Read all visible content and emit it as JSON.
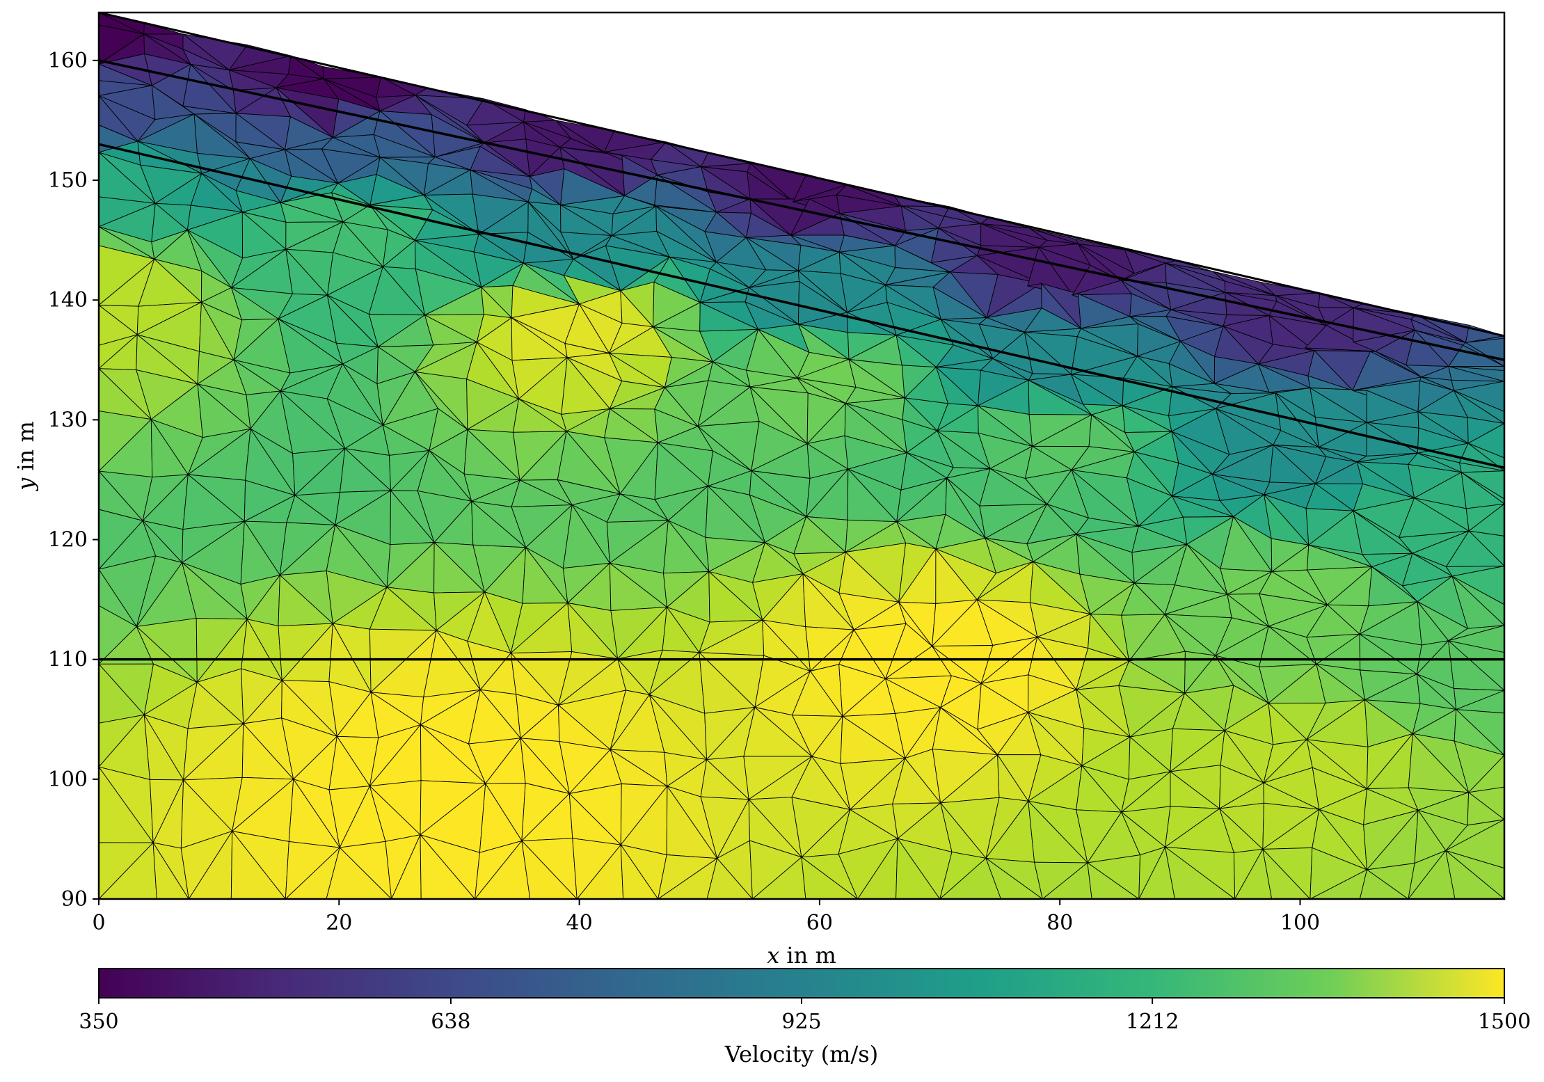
{
  "chart_data": {
    "type": "heatmap",
    "subtype": "triangulated velocity model (tripcolor)",
    "xlabel_var": "x",
    "xlabel_rest": " in m",
    "ylabel_var": "y",
    "ylabel_rest": " in m",
    "xlim": [
      0,
      117
    ],
    "ylim": [
      90,
      164
    ],
    "xticks": [
      "0",
      "20",
      "40",
      "60",
      "80",
      "100"
    ],
    "xtick_values": [
      0,
      20,
      40,
      60,
      80,
      100
    ],
    "yticks": [
      "90",
      "100",
      "110",
      "120",
      "130",
      "140",
      "150",
      "160"
    ],
    "ytick_values": [
      90,
      100,
      110,
      120,
      130,
      140,
      150,
      160
    ],
    "grid": false,
    "surface": {
      "x": [
        0,
        117
      ],
      "y": [
        164,
        137
      ]
    },
    "interfaces": [
      {
        "x": [
          0,
          117
        ],
        "y": [
          160,
          135
        ]
      },
      {
        "x": [
          0,
          117
        ],
        "y": [
          153,
          126
        ]
      },
      {
        "x": [
          0,
          117
        ],
        "y": [
          110,
          110
        ]
      }
    ],
    "colorbar": {
      "label": "Velocity (m/s)",
      "orientation": "horizontal",
      "colormap": "viridis",
      "min": 350,
      "max": 1500,
      "ticks": [
        "350",
        "638",
        "925",
        "1212",
        "1500"
      ],
      "tick_values": [
        350,
        638,
        925,
        1212,
        1500
      ]
    },
    "velocity_field_samples": [
      {
        "x": 0,
        "y": 163,
        "v": 350
      },
      {
        "x": 0,
        "y": 156,
        "v": 620
      },
      {
        "x": 0,
        "y": 150,
        "v": 1060
      },
      {
        "x": 0,
        "y": 140,
        "v": 1380
      },
      {
        "x": 20,
        "y": 158,
        "v": 360
      },
      {
        "x": 20,
        "y": 153,
        "v": 700
      },
      {
        "x": 20,
        "y": 146,
        "v": 1150
      },
      {
        "x": 40,
        "y": 154,
        "v": 420
      },
      {
        "x": 40,
        "y": 145,
        "v": 900
      },
      {
        "x": 40,
        "y": 138,
        "v": 1450
      },
      {
        "x": 60,
        "y": 150,
        "v": 400
      },
      {
        "x": 60,
        "y": 140,
        "v": 900
      },
      {
        "x": 60,
        "y": 134,
        "v": 1250
      },
      {
        "x": 80,
        "y": 144,
        "v": 430
      },
      {
        "x": 80,
        "y": 134,
        "v": 900
      },
      {
        "x": 80,
        "y": 129,
        "v": 1200
      },
      {
        "x": 100,
        "y": 139,
        "v": 480
      },
      {
        "x": 100,
        "y": 128,
        "v": 920
      },
      {
        "x": 100,
        "y": 115,
        "v": 1250
      },
      {
        "x": 100,
        "y": 100,
        "v": 1380
      },
      {
        "x": 110,
        "y": 120,
        "v": 1100
      },
      {
        "x": 115,
        "y": 110,
        "v": 1200
      },
      {
        "x": 115,
        "y": 95,
        "v": 1320
      },
      {
        "x": 30,
        "y": 100,
        "v": 1500
      },
      {
        "x": 70,
        "y": 110,
        "v": 1500
      }
    ]
  }
}
